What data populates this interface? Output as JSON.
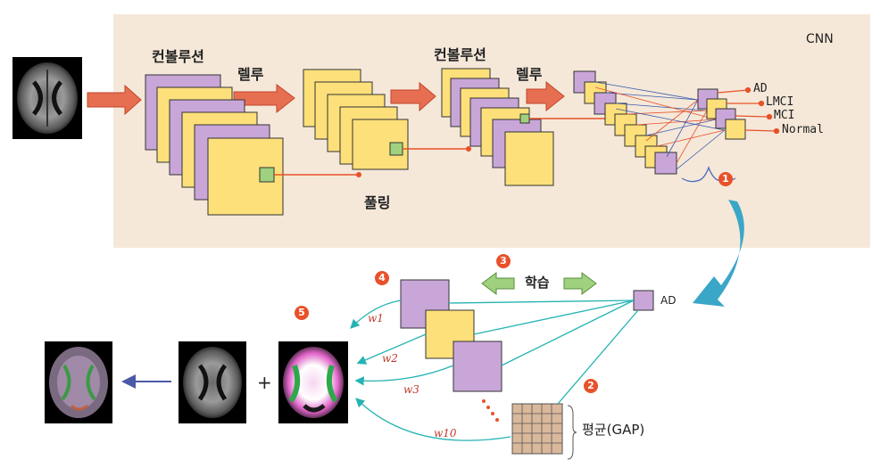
{
  "cnn": {
    "title": "CNN",
    "conv_label_1": "컨볼루션",
    "relu_label_1": "렐루",
    "pool_label": "풀링",
    "conv_label_2": "컨볼루션",
    "relu_label_2": "렐루",
    "outputs": [
      "AD",
      "LMCI",
      "MCI",
      "Normal"
    ]
  },
  "bottom": {
    "learn_label": "학습",
    "ad_label": "AD",
    "weights": [
      "w1",
      "w2",
      "w3",
      "w10"
    ],
    "gap_label": "평균(GAP)",
    "plus": "+"
  },
  "badges": [
    "1",
    "2",
    "3",
    "4",
    "5"
  ],
  "colors": {
    "panel_bg": "#f5e8d9",
    "feature_yellow": "#fde07a",
    "feature_purple": "#c9a6d8",
    "arrow_orange": "#e76f51",
    "teal": "#26b3b3",
    "badge_red": "#e8512a",
    "big_arrow_blue": "#3aa6c8",
    "gap_grid": "#d9b89b"
  }
}
